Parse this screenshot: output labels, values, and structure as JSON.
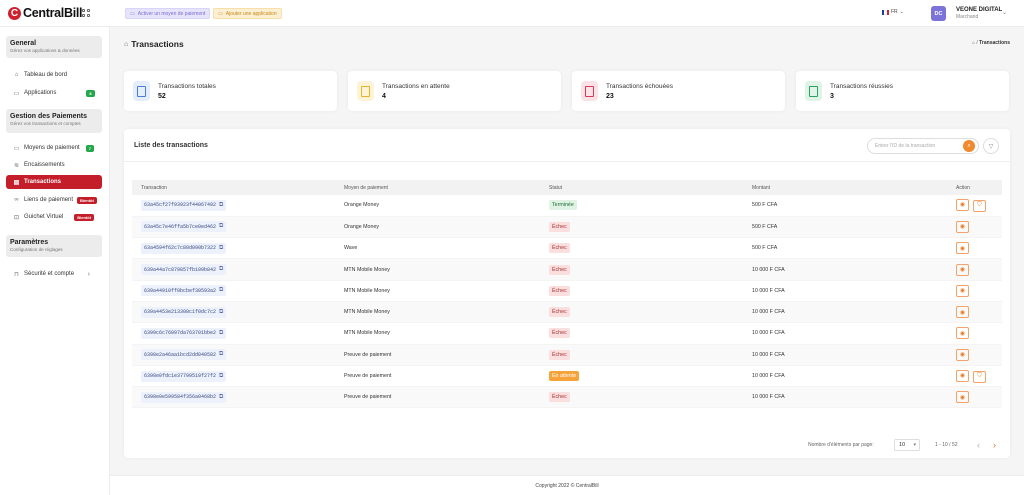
{
  "header": {
    "logo_text": "CentralBill",
    "add_payment_method": "Activer un moyen de paiement",
    "add_application": "Ajouter une application",
    "lang": "FR",
    "avatar_initials": "DC",
    "user_name": "VEONE DIGITAL",
    "user_role": "Marchand"
  },
  "sidebar": {
    "general_title": "General",
    "general_sub": "Gérez vos applications & données",
    "dashboard": "Tableau de bord",
    "applications": "Applications",
    "applications_badge": "8",
    "payments_title": "Gestion des Paiements",
    "payments_sub": "Gérez vos transactions et comptes",
    "payment_methods": "Moyens de paiement",
    "payment_methods_badge": "7",
    "collections": "Encaissements",
    "transactions": "Transactions",
    "payment_links": "Liens de paiement",
    "payment_links_badge": "Bientôt",
    "virtual_counter": "Guichet Virtuel",
    "virtual_counter_badge": "Bientôt",
    "settings_title": "Paramètres",
    "settings_sub": "Configuration de réglages",
    "security": "Sécurité et compte"
  },
  "page": {
    "title": "Transactions",
    "breadcrumb_current": "Transactions"
  },
  "stats": [
    {
      "label": "Transactions totales",
      "value": "52",
      "color": "#4a7fd6",
      "bg": "#e5edfb"
    },
    {
      "label": "Transactions en attente",
      "value": "4",
      "color": "#e5b42a",
      "bg": "#fdf3d6"
    },
    {
      "label": "Transactions échouées",
      "value": "23",
      "color": "#d93a5c",
      "bg": "#fbe2e7"
    },
    {
      "label": "Transactions réussies",
      "value": "3",
      "color": "#2aa262",
      "bg": "#dff3e7"
    }
  ],
  "list": {
    "title": "Liste des transactions",
    "search_placeholder": "Entrer l'ID de la transaction",
    "columns": [
      "Transaction",
      "Moyen de paiement",
      "Statut",
      "Montant",
      "Action"
    ],
    "rows": [
      {
        "id": "63a45cf27f93923f44067492",
        "method": "Orange Money",
        "status": "Terminée",
        "status_type": "ok",
        "amount": "500 F CFA",
        "extra_action": true
      },
      {
        "id": "63a45c7e46ffa5b7ce0ed462",
        "method": "Orange Money",
        "status": "Échec",
        "status_type": "ko",
        "amount": "500 F CFA",
        "extra_action": false
      },
      {
        "id": "63a4594f62c7c80d090b7322",
        "method": "Wave",
        "status": "Échec",
        "status_type": "ko",
        "amount": "500 F CFA",
        "extra_action": false
      },
      {
        "id": "639a44a7c879857fb109b842",
        "method": "MTN Mobile Money",
        "status": "Échec",
        "status_type": "ko",
        "amount": "10 000 F CFA",
        "extra_action": false
      },
      {
        "id": "639a44910ff0bcbef30593a2",
        "method": "MTN Mobile Money",
        "status": "Échec",
        "status_type": "ko",
        "amount": "10 000 F CFA",
        "extra_action": false
      },
      {
        "id": "639a4453e213308c1f0dc7c2",
        "method": "MTN Mobile Money",
        "status": "Échec",
        "status_type": "ko",
        "amount": "10 000 F CFA",
        "extra_action": false
      },
      {
        "id": "6399c6c76097da763701bbe2",
        "method": "MTN Mobile Money",
        "status": "Échec",
        "status_type": "ko",
        "amount": "10 000 F CFA",
        "extra_action": false
      },
      {
        "id": "6398e2a46aa1bcd2dd040582",
        "method": "Preuve de paiement",
        "status": "Échec",
        "status_type": "ko",
        "amount": "10 000 F CFA",
        "extra_action": false
      },
      {
        "id": "6398e0fdc1e37799510f27f2",
        "method": "Preuve de paiement",
        "status": "En attente",
        "status_type": "wait",
        "amount": "10 000 F CFA",
        "extra_action": true
      },
      {
        "id": "6398e0e599584f356a0468b2",
        "method": "Preuve de paiement",
        "status": "Échec",
        "status_type": "ko",
        "amount": "10 000 F CFA",
        "extra_action": false
      }
    ]
  },
  "pager": {
    "label": "Nombre d'éléments par page:",
    "per_page": "10",
    "range": "1 - 10 / 52"
  },
  "footer": {
    "text": "Copyright 2022 © CentralBill"
  }
}
